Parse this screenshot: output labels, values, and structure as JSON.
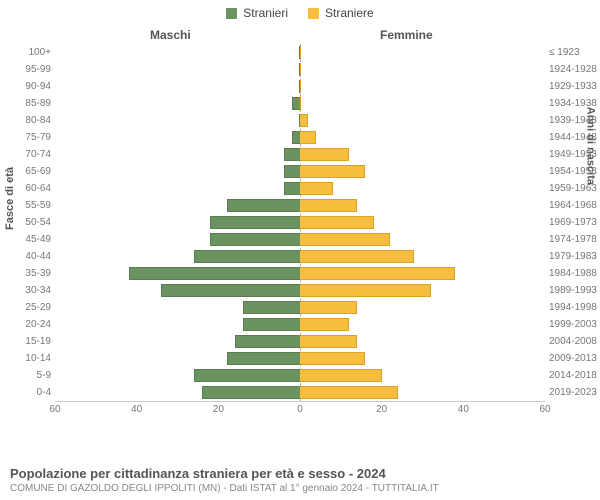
{
  "legend": {
    "male": "Stranieri",
    "female": "Straniere"
  },
  "columns": {
    "male": "Maschi",
    "female": "Femmine"
  },
  "axis_titles": {
    "left": "Fasce di età",
    "right": "Anni di nascita"
  },
  "colors": {
    "male": "#6b9360",
    "female": "#f7bd3f",
    "male_border": "#5a7d51",
    "female_border": "#d9a22f",
    "bg": "#ffffff"
  },
  "chart": {
    "type": "population-pyramid",
    "x_max": 60,
    "x_ticks_left": [
      60,
      40,
      20,
      0
    ],
    "x_ticks_right": [
      0,
      20,
      40,
      60
    ],
    "rows": [
      {
        "age": "100+",
        "birth": "≤ 1923",
        "m": 0,
        "f": 0
      },
      {
        "age": "95-99",
        "birth": "1924-1928",
        "m": 0,
        "f": 0
      },
      {
        "age": "90-94",
        "birth": "1929-1933",
        "m": 0,
        "f": 0
      },
      {
        "age": "85-89",
        "birth": "1934-1938",
        "m": 2,
        "f": 0
      },
      {
        "age": "80-84",
        "birth": "1939-1943",
        "m": 0,
        "f": 2
      },
      {
        "age": "75-79",
        "birth": "1944-1948",
        "m": 2,
        "f": 4
      },
      {
        "age": "70-74",
        "birth": "1949-1953",
        "m": 4,
        "f": 12
      },
      {
        "age": "65-69",
        "birth": "1954-1958",
        "m": 4,
        "f": 16
      },
      {
        "age": "60-64",
        "birth": "1959-1963",
        "m": 4,
        "f": 8
      },
      {
        "age": "55-59",
        "birth": "1964-1968",
        "m": 18,
        "f": 14
      },
      {
        "age": "50-54",
        "birth": "1969-1973",
        "m": 22,
        "f": 18
      },
      {
        "age": "45-49",
        "birth": "1974-1978",
        "m": 22,
        "f": 22
      },
      {
        "age": "40-44",
        "birth": "1979-1983",
        "m": 26,
        "f": 28
      },
      {
        "age": "35-39",
        "birth": "1984-1988",
        "m": 42,
        "f": 38
      },
      {
        "age": "30-34",
        "birth": "1989-1993",
        "m": 34,
        "f": 32
      },
      {
        "age": "25-29",
        "birth": "1994-1998",
        "m": 14,
        "f": 14
      },
      {
        "age": "20-24",
        "birth": "1999-2003",
        "m": 14,
        "f": 12
      },
      {
        "age": "15-19",
        "birth": "2004-2008",
        "m": 16,
        "f": 14
      },
      {
        "age": "10-14",
        "birth": "2009-2013",
        "m": 18,
        "f": 16
      },
      {
        "age": "5-9",
        "birth": "2014-2018",
        "m": 26,
        "f": 20
      },
      {
        "age": "0-4",
        "birth": "2019-2023",
        "m": 24,
        "f": 24
      }
    ]
  },
  "footer": {
    "title": "Popolazione per cittadinanza straniera per età e sesso - 2024",
    "subtitle": "COMUNE DI GAZOLDO DEGLI IPPOLITI (MN) - Dati ISTAT al 1° gennaio 2024 - TUTTITALIA.IT"
  }
}
